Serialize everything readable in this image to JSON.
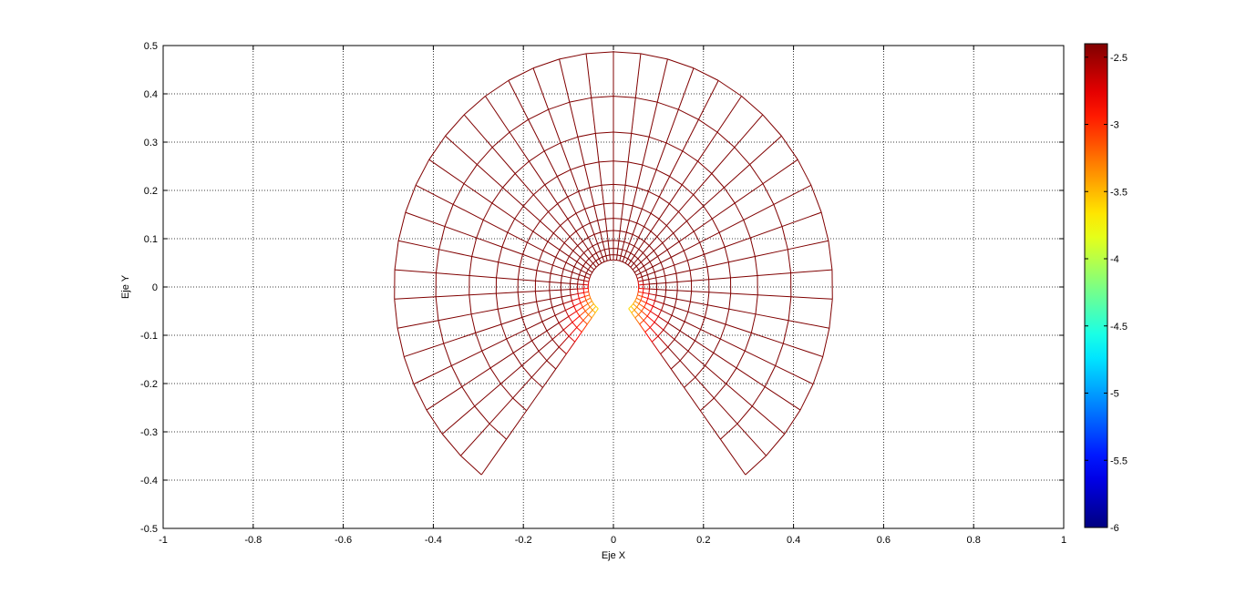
{
  "chart_data": {
    "type": "mesh",
    "title": "",
    "xlabel": "Eje X",
    "ylabel": "Eje Y",
    "xlim": [
      -1,
      1
    ],
    "ylim": [
      -0.5,
      0.5
    ],
    "grid": true,
    "x_ticks": [
      -1,
      -0.8,
      -0.6,
      -0.4,
      -0.2,
      0,
      0.2,
      0.4,
      0.6,
      0.8,
      1
    ],
    "x_tick_labels": [
      "-1",
      "-0.8",
      "-0.6",
      "-0.4",
      "-0.2",
      "0",
      "0.2",
      "0.4",
      "0.6",
      "0.8",
      "1"
    ],
    "y_ticks": [
      -0.5,
      -0.4,
      -0.3,
      -0.2,
      -0.1,
      0,
      0.1,
      0.2,
      0.3,
      0.4,
      0.5
    ],
    "y_tick_labels": [
      "-0.5",
      "-0.4",
      "-0.3",
      "-0.2",
      "-0.1",
      "0",
      "0.1",
      "0.2",
      "0.3",
      "0.4",
      "0.5"
    ],
    "mesh": {
      "geometry": "annular sector centered at origin",
      "inner_radius": 0.056,
      "outer_radius": 0.487,
      "theta_start_deg": -53,
      "theta_end_deg": 233,
      "n_radial_lines": 40,
      "n_rings": 11,
      "ring_pattern": "geometric",
      "ring_ratio": 1.24,
      "color_value": "log(r) + sin(theta)",
      "cmin": -6,
      "cmax": -2.4
    },
    "colorbar": {
      "colormap": "jet",
      "clim": [
        -6,
        -2.4
      ],
      "ticks": [
        -6,
        -5.5,
        -5,
        -4.5,
        -4,
        -3.5,
        -3,
        -2.5
      ],
      "tick_labels": [
        "-6",
        "-5.5",
        "-5",
        "-4.5",
        "-4",
        "-3.5",
        "-3",
        "-2.5"
      ]
    }
  }
}
